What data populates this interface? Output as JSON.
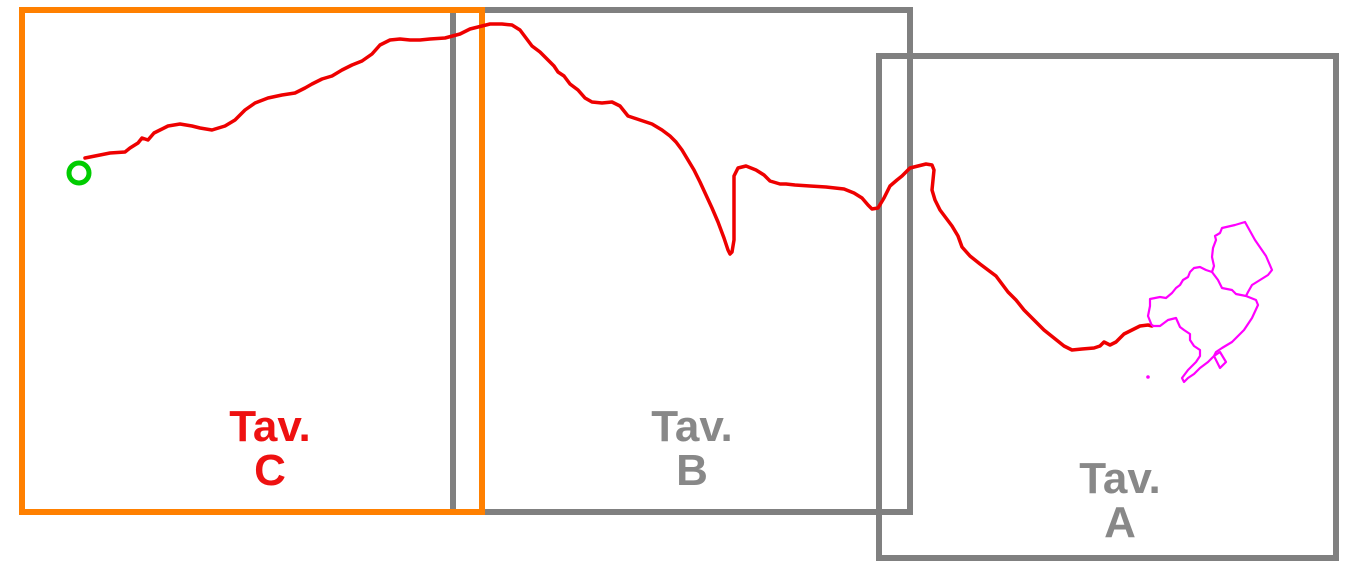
{
  "map": {
    "route_color": "#ee0000",
    "start_marker_color": "#00cc00",
    "area_outline_color": "#ff00ff",
    "tiles": [
      {
        "id": "C",
        "line1": "Tav.",
        "line2": "C",
        "frame_color": "#ff8000",
        "label_color": "#ee1111",
        "active": true
      },
      {
        "id": "B",
        "line1": "Tav.",
        "line2": "B",
        "frame_color": "#808080",
        "label_color": "#888888",
        "active": false
      },
      {
        "id": "A",
        "line1": "Tav.",
        "line2": "A",
        "frame_color": "#808080",
        "label_color": "#888888",
        "active": false
      }
    ]
  }
}
